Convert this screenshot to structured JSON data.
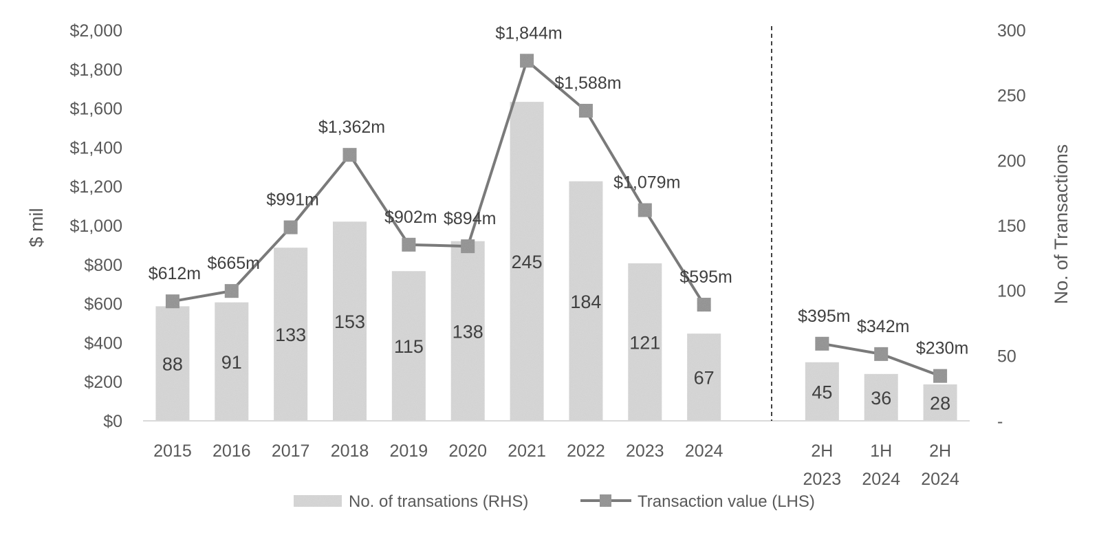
{
  "chart_data": {
    "type": "bar",
    "combo": "bar+line",
    "title": "",
    "categories": [
      "2015",
      "2016",
      "2017",
      "2018",
      "2019",
      "2020",
      "2021",
      "2022",
      "2023",
      "2024",
      "",
      "2H 2023",
      "1H 2024",
      "2H 2024"
    ],
    "category_lines": [
      [
        "2015"
      ],
      [
        "2016"
      ],
      [
        "2017"
      ],
      [
        "2018"
      ],
      [
        "2019"
      ],
      [
        "2020"
      ],
      [
        "2021"
      ],
      [
        "2022"
      ],
      [
        "2023"
      ],
      [
        "2024"
      ],
      [],
      [
        "2H",
        "2023"
      ],
      [
        "1H",
        "2024"
      ],
      [
        "2H",
        "2024"
      ]
    ],
    "series": [
      {
        "name": "No. of transations (RHS)",
        "type": "bar",
        "axis": "right",
        "color": "#d9d9d9",
        "values": [
          88,
          91,
          133,
          153,
          115,
          138,
          245,
          184,
          121,
          67,
          null,
          45,
          36,
          28
        ],
        "labels": [
          "88",
          "91",
          "133",
          "153",
          "115",
          "138",
          "245",
          "184",
          "121",
          "67",
          "",
          "45",
          "36",
          "28"
        ]
      },
      {
        "name": "Transaction value (LHS)",
        "type": "line",
        "axis": "left",
        "color": "#7a7a7a",
        "marker_color": "#8c8c8c",
        "marker": "square",
        "segments": [
          [
            0,
            9
          ],
          [
            11,
            13
          ]
        ],
        "values": [
          612,
          665,
          991,
          1362,
          902,
          894,
          1844,
          1588,
          1079,
          595,
          null,
          395,
          342,
          230
        ],
        "labels": [
          "$612m",
          "$665m",
          "$991m",
          "$1,362m",
          "$902m",
          "$894m",
          "$1,844m",
          "$1,588m",
          "$1,079m",
          "$595m",
          "",
          "$395m",
          "$342m",
          "$230m"
        ]
      }
    ],
    "left_axis": {
      "title": "$ mil",
      "ylim": [
        0,
        2000
      ],
      "ticks": [
        0,
        200,
        400,
        600,
        800,
        1000,
        1200,
        1400,
        1600,
        1800,
        2000
      ],
      "tick_labels": [
        "$0",
        "$200",
        "$400",
        "$600",
        "$800",
        "$1,000",
        "$1,200",
        "$1,400",
        "$1,600",
        "$1,800",
        "$2,000"
      ]
    },
    "right_axis": {
      "title": "No. of Transactions",
      "ylim": [
        0,
        300
      ],
      "ticks": [
        0,
        50,
        100,
        150,
        200,
        250,
        300
      ],
      "tick_labels": [
        "-",
        "50",
        "100",
        "150",
        "200",
        "250",
        "300"
      ]
    },
    "xlabel": "",
    "grid": false,
    "divider": "dashed vertical line between 2024 and 2H 2023",
    "legend": {
      "position": "bottom",
      "items": [
        {
          "label": "No. of transations (RHS)",
          "kind": "bar-swatch"
        },
        {
          "label": "Transaction value (LHS)",
          "kind": "line-marker"
        }
      ]
    },
    "colors": {
      "axis_text": "#595959",
      "data_text": "#404040",
      "baseline": "#d9d9d9",
      "divider": "#000000"
    }
  }
}
